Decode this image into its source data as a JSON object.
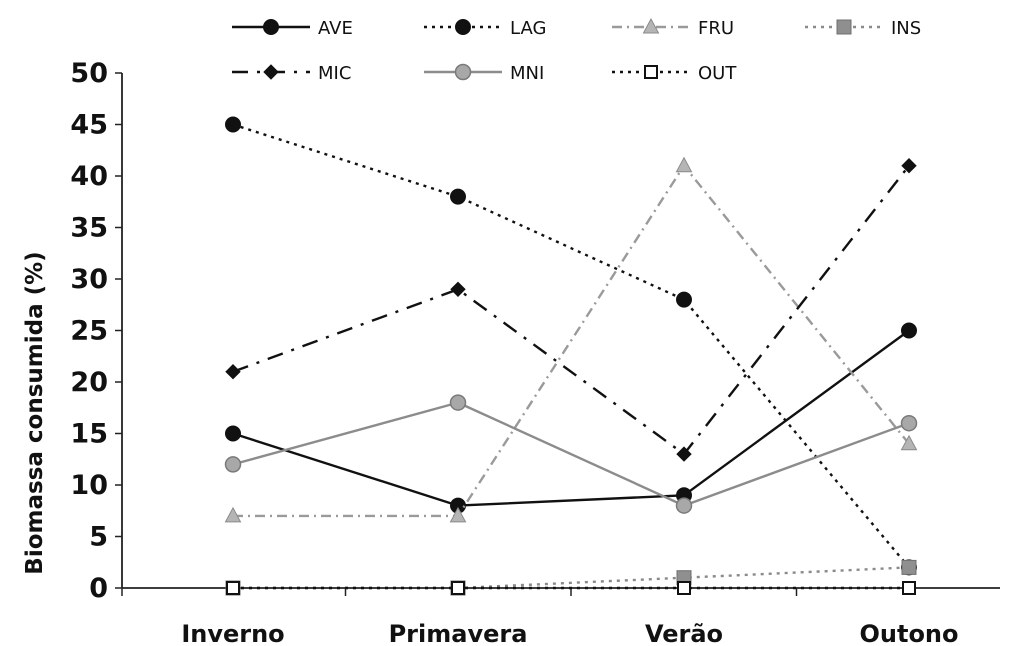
{
  "chart_data": {
    "type": "line",
    "title": "",
    "xlabel": "",
    "ylabel": "Biomassa consumida (%)",
    "categories": [
      "Inverno",
      "Primavera",
      "Verão",
      "Outono"
    ],
    "ylim": [
      0,
      50
    ],
    "yticks": [
      0,
      5,
      10,
      15,
      20,
      25,
      30,
      35,
      40,
      45,
      50
    ],
    "grid": false,
    "legend_position": "top",
    "series": [
      {
        "name": "AVE",
        "values": [
          15,
          8,
          9,
          25
        ],
        "color": "#111111",
        "dash": "solid",
        "marker": "circle-filled"
      },
      {
        "name": "LAG",
        "values": [
          45,
          38,
          28,
          2
        ],
        "color": "#111111",
        "dash": "dotted",
        "marker": "circle-filled"
      },
      {
        "name": "FRU",
        "values": [
          7,
          7,
          41,
          14
        ],
        "color": "#9a9a9a",
        "dash": "dashdot",
        "marker": "triangle"
      },
      {
        "name": "INS",
        "values": [
          0,
          0,
          1,
          2
        ],
        "color": "#8a8a8a",
        "dash": "dotted",
        "marker": "square-filled"
      },
      {
        "name": "MIC",
        "values": [
          21,
          29,
          13,
          41
        ],
        "color": "#111111",
        "dash": "longdash",
        "marker": "diamond"
      },
      {
        "name": "MNI",
        "values": [
          12,
          18,
          8,
          16
        ],
        "color": "#8c8c8c",
        "dash": "solid",
        "marker": "circle-gray"
      },
      {
        "name": "OUT",
        "values": [
          0,
          0,
          0,
          0
        ],
        "color": "#111111",
        "dash": "dotted",
        "marker": "square-open"
      }
    ]
  }
}
